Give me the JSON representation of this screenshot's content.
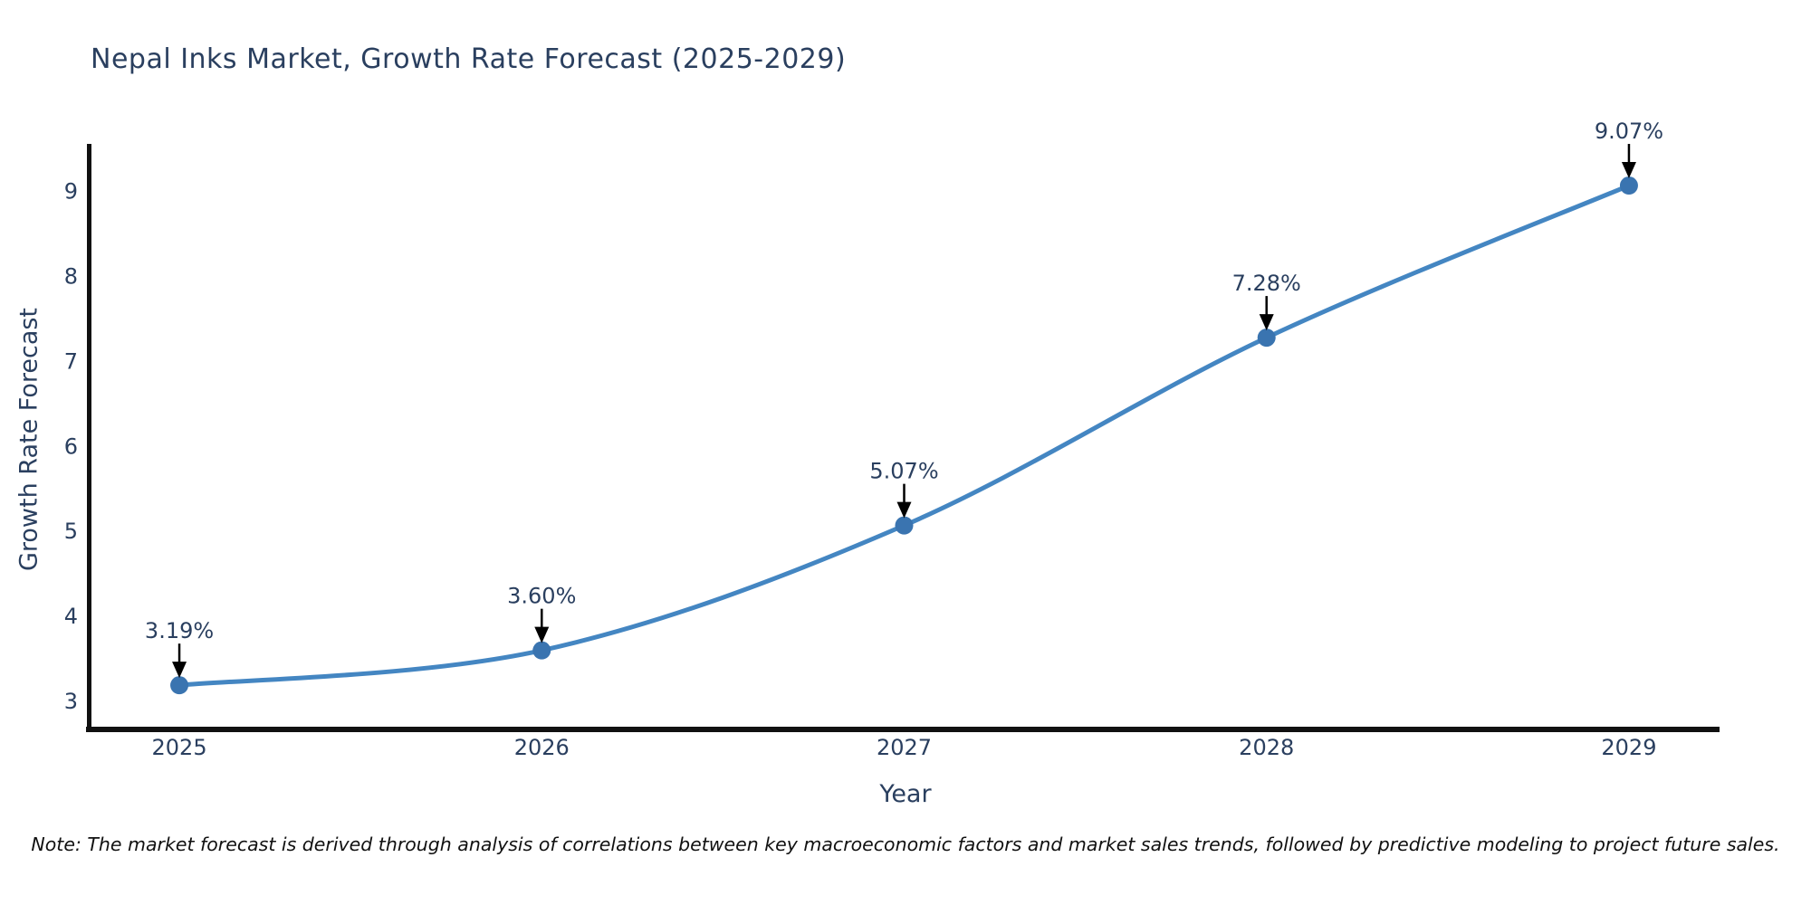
{
  "title": "Nepal Inks Market, Growth Rate Forecast (2025-2029)",
  "note": "Note: The market forecast is derived through analysis of correlations between key macroeconomic factors and market sales trends, followed by predictive modeling to project future sales.",
  "chart_data": {
    "type": "line",
    "title": "Nepal Inks Market, Growth Rate Forecast (2025-2029)",
    "xlabel": "Year",
    "ylabel": "Growth Rate Forecast",
    "x": [
      2025,
      2026,
      2027,
      2028,
      2029
    ],
    "x_tick_labels": [
      "2025",
      "2026",
      "2027",
      "2028",
      "2029"
    ],
    "series": [
      {
        "name": "Growth Rate Forecast",
        "values": [
          3.19,
          3.6,
          5.07,
          7.28,
          9.07
        ]
      }
    ],
    "point_labels": [
      "3.19%",
      "3.60%",
      "5.07%",
      "7.28%",
      "9.07%"
    ],
    "yticks": [
      3,
      4,
      5,
      6,
      7,
      8,
      9
    ],
    "xlim": [
      2024.75,
      2029.25
    ],
    "ylim": [
      2.67,
      9.56
    ],
    "line_shape": "spline",
    "grid": false,
    "legend_position": "none",
    "colors": {
      "line": "#4486c2",
      "marker": "#3a74b0",
      "axis_line": "#111111",
      "tick_text": "#2a3f5f",
      "annotation_text": "#2a3f5f",
      "annotation_arrow": "#000000",
      "background": "#ffffff"
    }
  }
}
